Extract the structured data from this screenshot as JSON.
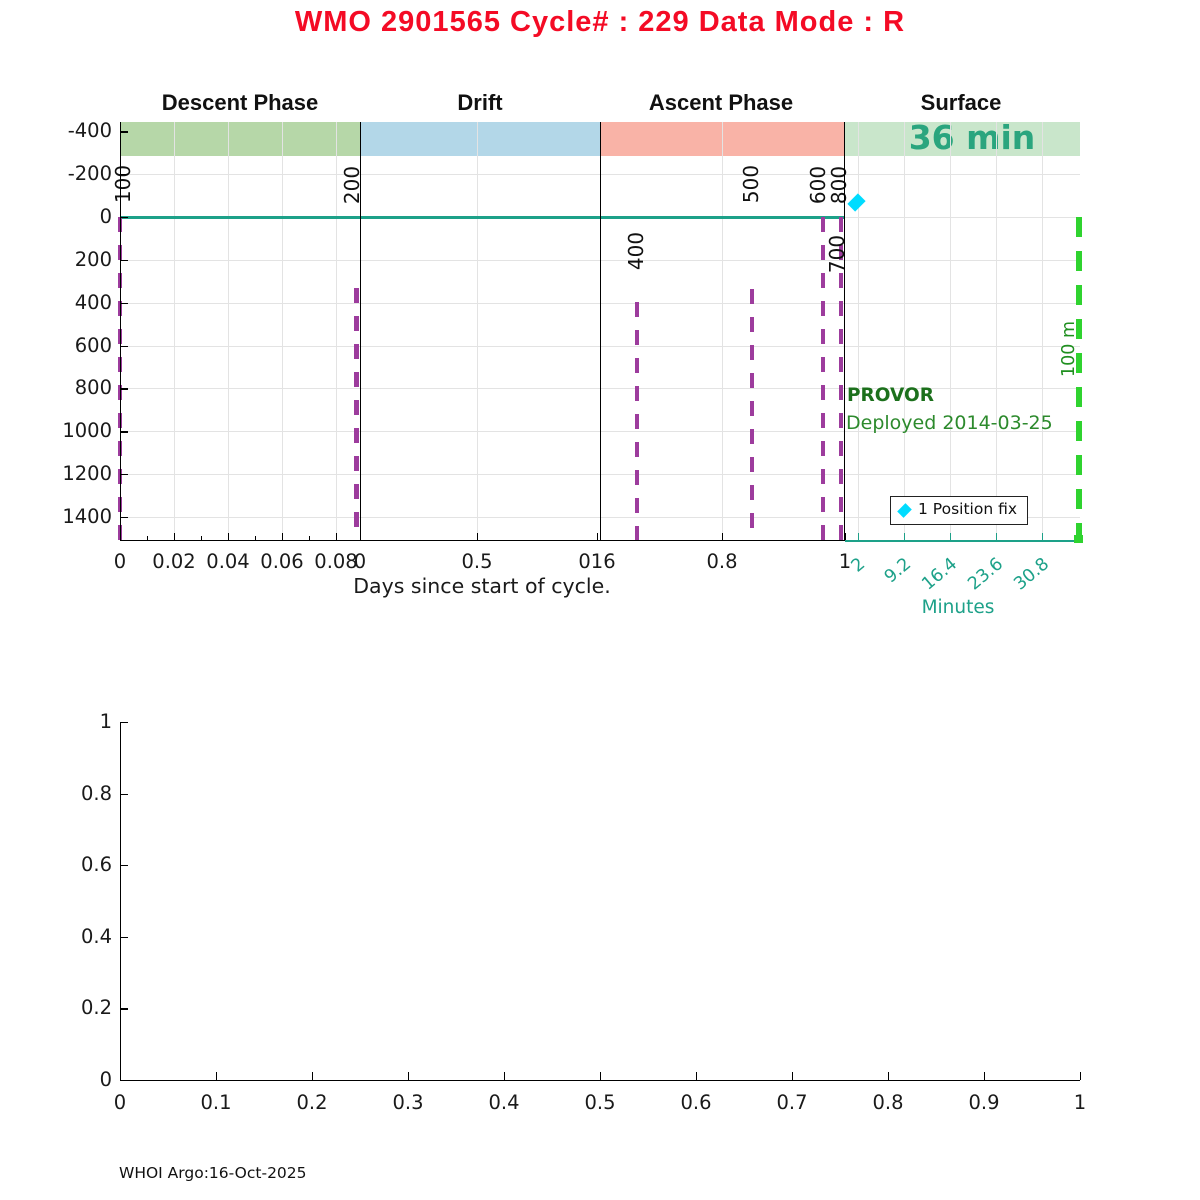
{
  "page": {
    "title": "WMO 2901565   Cycle# : 229   Data Mode : R",
    "footer": "WHOI Argo:16-Oct-2025"
  },
  "colors": {
    "title_red": "#f40b25",
    "teal": "#1da189",
    "purple": "#9d3c9d",
    "band_descent": "#b6d7a8",
    "band_drift": "#b3d7e8",
    "band_ascent": "#f9b3a7",
    "band_surface": "#c9e6cb",
    "surface_text": "#2aa57e",
    "lime_green": "#2fd32f",
    "ref_label_green": "#1f8f1f",
    "dark_green": "#1c701c",
    "mid_green": "#2d8a2d",
    "cyan": "#00dcff",
    "grid": "#e3e3e3",
    "axis": "#000000"
  },
  "chart_data": [
    {
      "type": "line",
      "title": "WMO 2901565   Cycle# : 229   Data Mode : R",
      "xlabel": "Days since start of cycle.",
      "minutes_axis_label": "Minutes",
      "ylim": [
        -450,
        1500
      ],
      "y_axis_inverted": true,
      "grid": true,
      "yticks": [
        "-400",
        "-200",
        "0",
        "200",
        "400",
        "600",
        "800",
        "1000",
        "1200",
        "1400"
      ],
      "phases": [
        {
          "label": "Descent Phase",
          "xticks": [
            "0",
            "0.02",
            "0.04",
            "0.06",
            "0.08"
          ]
        },
        {
          "label": "Drift",
          "xticks": [
            "0",
            "0.5"
          ]
        },
        {
          "label": "Ascent Phase",
          "xticks": [
            "016",
            "0.8",
            "1"
          ]
        },
        {
          "label": "Surface",
          "badge": "36 min",
          "xticks": [
            "2",
            "9.2",
            "16.4",
            "23.6",
            "30.8"
          ]
        }
      ],
      "events": [
        {
          "code": "100",
          "phase": "descent",
          "x_days": 0,
          "line_from_depth": 0
        },
        {
          "code": "200",
          "phase": "drift",
          "x_days": 0,
          "line_from_depth": 340
        },
        {
          "code": "400",
          "phase": "ascent",
          "x_days": 0.66,
          "line_from_depth": 400
        },
        {
          "code": "500",
          "phase": "ascent",
          "x_days": 0.85,
          "line_from_depth": 340
        },
        {
          "code": "600",
          "phase": "ascent",
          "x_days": 0.96,
          "line_from_depth": 0
        },
        {
          "code": "700",
          "phase": "ascent",
          "x_days": 0.99,
          "line_from_depth": 0
        },
        {
          "code": "800",
          "phase": "ascent",
          "x_days": 0.99,
          "line_from_depth": 0
        }
      ],
      "surface_duration": "36 min",
      "reference_line_label": "100 m",
      "position_fix": {
        "count": 1,
        "minutes": 2
      },
      "annotations": {
        "float_type": "PROVOR",
        "deployed": "Deployed 2014-03-25"
      },
      "legend": {
        "marker": "diamond",
        "label": "1 Position fix",
        "position": "lower right"
      }
    },
    {
      "type": "empty-axes",
      "xticks": [
        "0",
        "0.1",
        "0.2",
        "0.3",
        "0.4",
        "0.5",
        "0.6",
        "0.7",
        "0.8",
        "0.9",
        "1"
      ],
      "yticks": [
        "0",
        "0.2",
        "0.4",
        "0.6",
        "0.8",
        "1"
      ],
      "xlim": [
        0,
        1
      ],
      "ylim": [
        0,
        1
      ]
    }
  ]
}
